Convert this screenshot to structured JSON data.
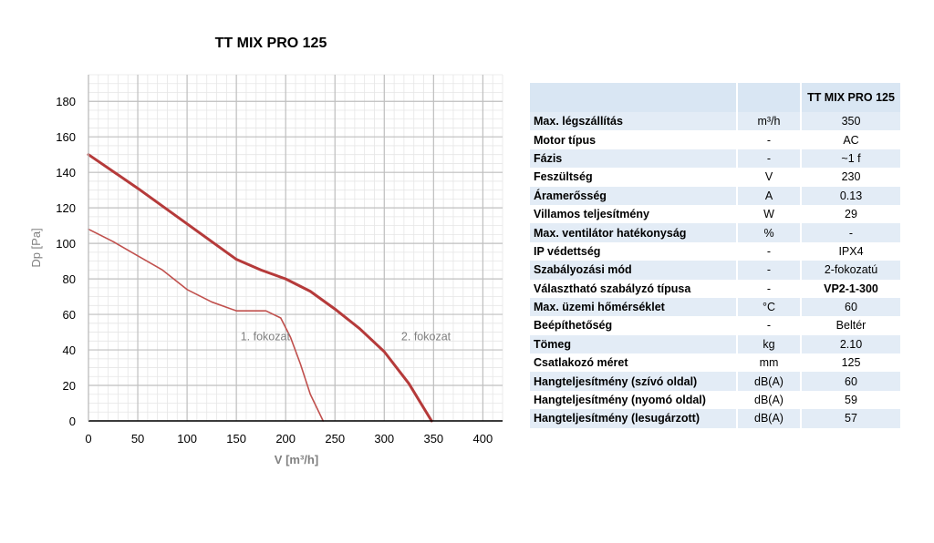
{
  "chart_data": {
    "type": "line",
    "title": "TT MIX PRO 125",
    "xlabel": "V [m³/h]",
    "ylabel": "Dp [Pa]",
    "xlim": [
      0,
      420
    ],
    "ylim": [
      0,
      195
    ],
    "xticks": [
      0,
      50,
      100,
      150,
      200,
      250,
      300,
      350,
      400
    ],
    "yticks": [
      0,
      20,
      40,
      60,
      80,
      100,
      120,
      140,
      160,
      180
    ],
    "grid": true,
    "series": [
      {
        "name": "1. fokozat",
        "color": "#c0504d",
        "x": [
          0,
          25,
          50,
          75,
          100,
          125,
          150,
          165,
          180,
          195,
          205,
          215,
          225,
          238
        ],
        "y": [
          108,
          101,
          93,
          85,
          74,
          67,
          62,
          62,
          62,
          58,
          47,
          32,
          15,
          0
        ]
      },
      {
        "name": "2. fokozat",
        "color": "#b53a3a",
        "x": [
          0,
          50,
          100,
          150,
          175,
          200,
          225,
          250,
          275,
          300,
          325,
          348
        ],
        "y": [
          150,
          131,
          111,
          91,
          85,
          80,
          73,
          63,
          52,
          39,
          21,
          0
        ]
      }
    ],
    "annotations": [
      {
        "text": "1. fokozat",
        "x": 145,
        "y": 44
      },
      {
        "text": "2. fokozat",
        "x": 308,
        "y": 44
      }
    ]
  },
  "table": {
    "header": {
      "label": "",
      "unit": "",
      "model": "TT MIX PRO 125"
    },
    "rows": [
      {
        "label": "Max. légszállítás",
        "unit": "m³/h",
        "value": "350",
        "value_bold": false
      },
      {
        "label": "Motor típus",
        "unit": "-",
        "value": "AC",
        "value_bold": false
      },
      {
        "label": "Fázis",
        "unit": "-",
        "value": "~1 f",
        "value_bold": false
      },
      {
        "label": "Feszültség",
        "unit": "V",
        "value": "230",
        "value_bold": false
      },
      {
        "label": "Áramerősség",
        "unit": "A",
        "value": "0.13",
        "value_bold": false
      },
      {
        "label": "Villamos teljesítmény",
        "unit": "W",
        "value": "29",
        "value_bold": false
      },
      {
        "label": "Max. ventilátor hatékonyság",
        "unit": "%",
        "value": "-",
        "value_bold": false
      },
      {
        "label": "IP védettség",
        "unit": "-",
        "value": "IPX4",
        "value_bold": false
      },
      {
        "label": "Szabályozási mód",
        "unit": "-",
        "value": "2-fokozatú",
        "value_bold": false
      },
      {
        "label": "Választható szabályzó típusa",
        "unit": "-",
        "value": "VP2-1-300",
        "value_bold": true
      },
      {
        "label": "Max. üzemi hőmérséklet",
        "unit": "°C",
        "value": "60",
        "value_bold": false
      },
      {
        "label": "Beépíthetőség",
        "unit": "-",
        "value": "Beltér",
        "value_bold": false
      },
      {
        "label": "Tömeg",
        "unit": "kg",
        "value": "2.10",
        "value_bold": false
      },
      {
        "label": "Csatlakozó méret",
        "unit": "mm",
        "value": "125",
        "value_bold": false
      },
      {
        "label": "Hangteljesítmény (szívó oldal)",
        "unit": "dB(A)",
        "value": "60",
        "value_bold": false
      },
      {
        "label": "Hangteljesítmény (nyomó oldal)",
        "unit": "dB(A)",
        "value": "59",
        "value_bold": false
      },
      {
        "label": "Hangteljesítmény (lesugárzott)",
        "unit": "dB(A)",
        "value": "57",
        "value_bold": false
      }
    ]
  },
  "colors": {
    "grid_major": "#bfbfbf",
    "grid_minor": "#e6e6e6",
    "axis": "#000000",
    "axis_label": "#808080",
    "table_stripe": "#e3ecf6",
    "table_header": "#d9e6f3"
  }
}
